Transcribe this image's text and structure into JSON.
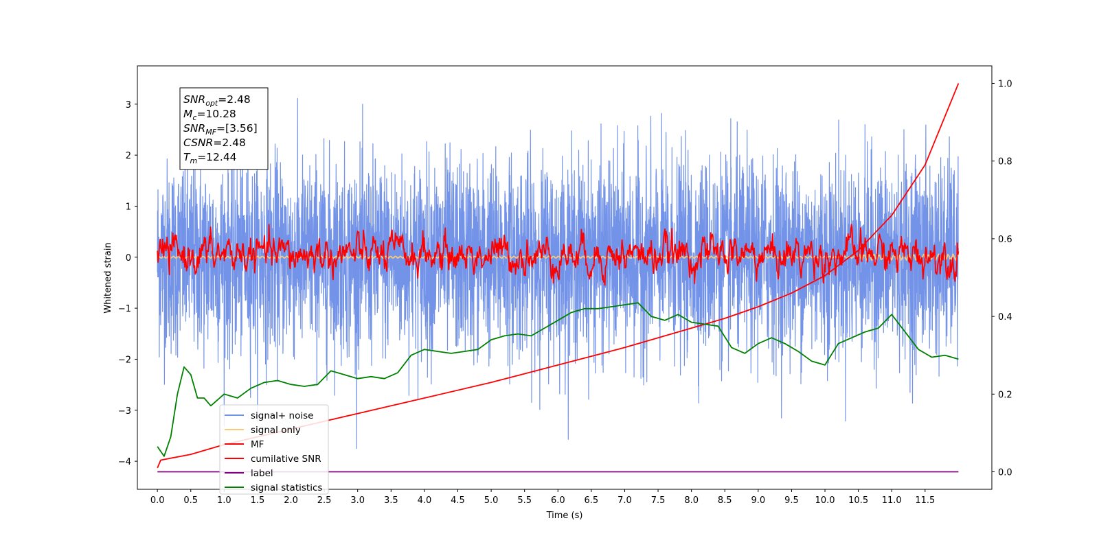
{
  "chart_data": {
    "type": "line",
    "xlabel": "Time (s)",
    "ylabel": "Whitened strain",
    "xlim": [
      -0.3,
      12.5
    ],
    "ylim": [
      -4.55,
      3.75
    ],
    "y2lim": [
      -0.045,
      1.045
    ],
    "x_ticks": [
      "0.0",
      "0.5",
      "1.0",
      "1.5",
      "2.0",
      "2.5",
      "3.0",
      "3.5",
      "4.0",
      "4.5",
      "5.0",
      "5.5",
      "6.0",
      "6.5",
      "7.0",
      "7.5",
      "8.0",
      "8.5",
      "9.0",
      "9.5",
      "10.0",
      "10.5",
      "11.0",
      "11.5"
    ],
    "y_ticks": [
      "3",
      "2",
      "1",
      "0",
      "−1",
      "−2",
      "−3",
      "−4"
    ],
    "y2_ticks": [
      "1.0",
      "0.8",
      "0.6",
      "0.4",
      "0.2",
      "0.0"
    ],
    "grid": false,
    "legend_position": "lower-left",
    "info_box": {
      "position": "upper-left",
      "lines": [
        {
          "main": "SNR",
          "sub": "opt",
          "value": "=2.48"
        },
        {
          "main": "M",
          "sub": "c",
          "value": "=10.28"
        },
        {
          "main": "SNR",
          "sub": "MF",
          "value": "=[3.56]"
        },
        {
          "main": "CSNR",
          "sub": "",
          "value": "=2.48"
        },
        {
          "main": "T",
          "sub": "m",
          "value": "=12.44"
        }
      ]
    },
    "series": [
      {
        "name": "signal+ noise",
        "color": "#7393e8",
        "axis": "left",
        "kind": "noise",
        "x_range": [
          0,
          12
        ],
        "std": 0.95
      },
      {
        "name": "signal only",
        "color": "#fbc97a",
        "axis": "left",
        "kind": "near-zero",
        "x_range": [
          0,
          12
        ]
      },
      {
        "name": "MF",
        "color": "#ff0000",
        "axis": "left",
        "kind": "noise",
        "x_range": [
          0,
          12
        ],
        "mean": 0.05,
        "std": 0.22
      },
      {
        "name": "cumilative SNR",
        "color": "#ff0000",
        "axis": "right",
        "x": [
          0.0,
          0.05,
          0.5,
          1.0,
          2.0,
          3.0,
          4.0,
          5.0,
          6.0,
          7.0,
          8.0,
          8.5,
          9.0,
          9.5,
          10.0,
          10.5,
          11.0,
          11.5,
          12.0
        ],
        "y": [
          0.01,
          0.03,
          0.045,
          0.07,
          0.11,
          0.15,
          0.19,
          0.23,
          0.275,
          0.32,
          0.37,
          0.395,
          0.425,
          0.46,
          0.505,
          0.57,
          0.66,
          0.79,
          1.0
        ]
      },
      {
        "name": "label",
        "color": "#800080",
        "axis": "right",
        "x": [
          0,
          12
        ],
        "y": [
          0.0,
          0.0
        ]
      },
      {
        "name": "signal statistics",
        "color": "#008000",
        "axis": "right",
        "x": [
          0.0,
          0.1,
          0.2,
          0.3,
          0.4,
          0.5,
          0.6,
          0.7,
          0.8,
          1.0,
          1.2,
          1.4,
          1.6,
          1.8,
          2.0,
          2.2,
          2.4,
          2.6,
          2.8,
          3.0,
          3.2,
          3.4,
          3.6,
          3.8,
          4.0,
          4.2,
          4.4,
          4.6,
          4.8,
          5.0,
          5.2,
          5.4,
          5.6,
          5.8,
          6.0,
          6.2,
          6.4,
          6.6,
          6.8,
          7.0,
          7.2,
          7.4,
          7.6,
          7.8,
          8.0,
          8.2,
          8.4,
          8.6,
          8.8,
          9.0,
          9.2,
          9.4,
          9.6,
          9.8,
          10.0,
          10.2,
          10.4,
          10.6,
          10.8,
          11.0,
          11.2,
          11.4,
          11.6,
          11.8,
          12.0
        ],
        "y": [
          0.065,
          0.04,
          0.09,
          0.2,
          0.27,
          0.25,
          0.19,
          0.19,
          0.17,
          0.2,
          0.19,
          0.215,
          0.23,
          0.235,
          0.225,
          0.22,
          0.225,
          0.26,
          0.25,
          0.24,
          0.245,
          0.24,
          0.255,
          0.3,
          0.315,
          0.31,
          0.305,
          0.31,
          0.315,
          0.34,
          0.35,
          0.355,
          0.35,
          0.37,
          0.39,
          0.41,
          0.42,
          0.42,
          0.425,
          0.43,
          0.435,
          0.4,
          0.39,
          0.405,
          0.385,
          0.38,
          0.375,
          0.32,
          0.305,
          0.33,
          0.345,
          0.33,
          0.31,
          0.285,
          0.275,
          0.33,
          0.345,
          0.36,
          0.37,
          0.405,
          0.36,
          0.315,
          0.295,
          0.3,
          0.29
        ]
      }
    ]
  }
}
